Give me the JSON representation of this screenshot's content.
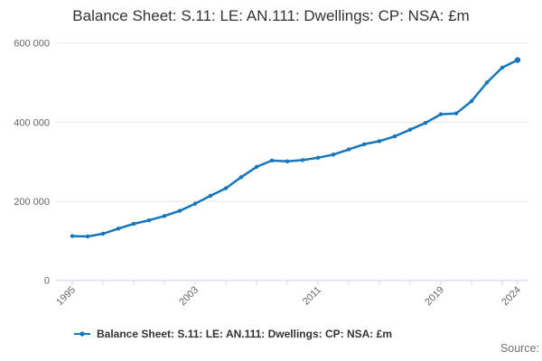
{
  "chart": {
    "title": "Balance Sheet: S.11: LE: AN.111: Dwellings: CP: NSA: £m",
    "legend_label": "Balance Sheet: S.11: LE: AN.111: Dwellings: CP: NSA: £m",
    "source_label": "Source:"
  },
  "chart_data": {
    "type": "line",
    "title": "Balance Sheet: S.11: LE: AN.111: Dwellings: CP: NSA: £m",
    "xlabel": "",
    "ylabel": "",
    "x": [
      1995,
      1996,
      1997,
      1998,
      1999,
      2000,
      2001,
      2002,
      2003,
      2004,
      2005,
      2006,
      2007,
      2008,
      2009,
      2010,
      2011,
      2012,
      2013,
      2014,
      2015,
      2016,
      2017,
      2018,
      2019,
      2020,
      2021,
      2022,
      2023,
      2024
    ],
    "series": [
      {
        "name": "Balance Sheet: S.11: LE: AN.111: Dwellings: CP: NSA: £m",
        "values": [
          112000,
          111000,
          118000,
          131000,
          143000,
          152000,
          163000,
          176000,
          194000,
          214000,
          233000,
          261000,
          287000,
          303000,
          301000,
          304000,
          310000,
          318000,
          331000,
          344000,
          352000,
          364000,
          381000,
          398000,
          420000,
          422000,
          453000,
          500000,
          538000,
          557000
        ]
      }
    ],
    "xlim": [
      1995,
      2024
    ],
    "ylim": [
      0,
      600000
    ],
    "yticks": [
      0,
      200000,
      400000,
      600000
    ],
    "ytick_labels": [
      "0",
      "200 000",
      "400 000",
      "600 000"
    ],
    "xtick_years": [
      1995,
      1997,
      1999,
      2001,
      2003,
      2005,
      2007,
      2009,
      2011,
      2013,
      2015,
      2017,
      2019,
      2021,
      2023,
      2024
    ],
    "xtick_label_years": [
      1995,
      2003,
      2011,
      2019,
      2024
    ],
    "grid": true,
    "legend_position": "bottom",
    "colors": {
      "line": "#1575bd",
      "grid": "#e6e6e6",
      "axis": "#ccd6eb",
      "tick_label": "#666666",
      "title": "#333333",
      "source": "#707070"
    }
  }
}
